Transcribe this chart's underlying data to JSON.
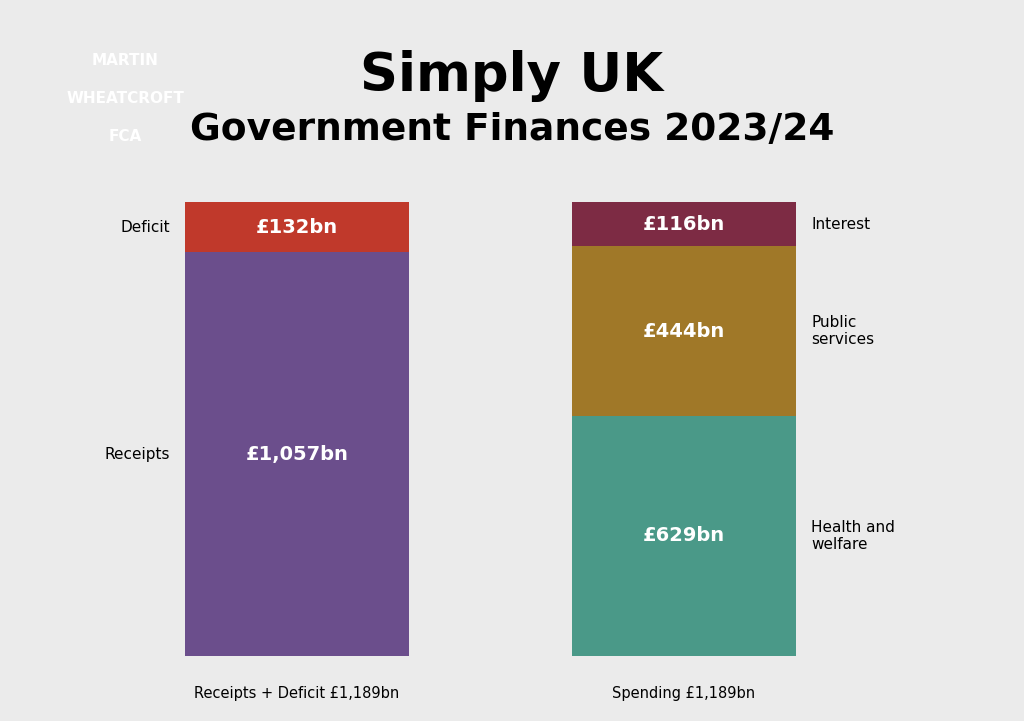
{
  "title_line1": "Simply UK",
  "title_line2": "Government Finances 2023/24",
  "author_lines": [
    "MARTIN",
    "WHEATCROFT",
    "FCA"
  ],
  "author_bg_color": "#5b90b8",
  "author_text_color": "#ffffff",
  "background_color": "#ebebeb",
  "total": 1189,
  "left_bar": {
    "label": "Receipts + Deficit £1,189bn",
    "segments": [
      {
        "label": "Receipts",
        "value": 1057,
        "color": "#6b4e8c",
        "text": "£1,057bn",
        "text_color": "#ffffff"
      },
      {
        "label": "Deficit",
        "value": 132,
        "color": "#c0392b",
        "text": "£132bn",
        "text_color": "#ffffff"
      }
    ]
  },
  "right_bar": {
    "label": "Spending £1,189bn",
    "segments": [
      {
        "label": "Health and\nwelfare",
        "value": 629,
        "color": "#4a9988",
        "text": "£629bn",
        "text_color": "#ffffff"
      },
      {
        "label": "Public\nservices",
        "value": 444,
        "color": "#a07828",
        "text": "£444bn",
        "text_color": "#ffffff"
      },
      {
        "label": "Interest",
        "value": 116,
        "color": "#7d2b44",
        "text": "£116bn",
        "text_color": "#ffffff"
      }
    ]
  }
}
